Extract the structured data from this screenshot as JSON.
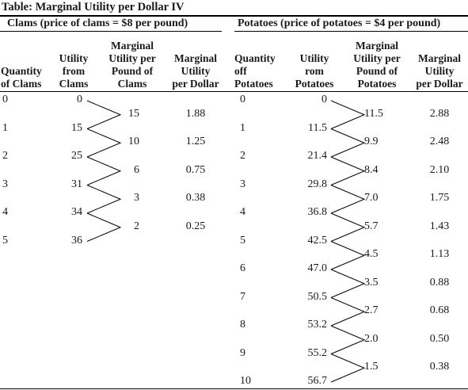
{
  "title": "Table: Marginal Utility per Dollar IV",
  "clams": {
    "group_title": "Clams (price of clams = $8 per pound)",
    "headers": {
      "quantity": [
        "Quantity",
        "of Clams"
      ],
      "utility": [
        "Utility",
        "from",
        "Clams"
      ],
      "mu": [
        "Marginal",
        "Utility per",
        "Pound of",
        "Clams"
      ],
      "mud": [
        "Marginal",
        "Utility",
        "per Dollar"
      ]
    },
    "quantity": [
      "0",
      "1",
      "2",
      "3",
      "4",
      "5"
    ],
    "utility": [
      "0",
      "15",
      "25",
      "31",
      "34",
      "36"
    ],
    "mu": [
      "15",
      "10",
      "6",
      "3",
      "2"
    ],
    "mud": [
      "1.88",
      "1.25",
      "0.75",
      "0.38",
      "0.25"
    ]
  },
  "potatoes": {
    "group_title": "Potatoes (price of potatoes = $4 per pound)",
    "headers": {
      "quantity": [
        "Quantity",
        "off",
        "Potatoes"
      ],
      "utility": [
        "Utility",
        "rom",
        "Potatoes"
      ],
      "mu": [
        "Marginal",
        "Utility per",
        "Pound of",
        "Potatoes"
      ],
      "mud": [
        "Marginal",
        "Utility",
        "per Dollar"
      ]
    },
    "quantity": [
      "0",
      "1",
      "2",
      "3",
      "4",
      "5",
      "6",
      "7",
      "8",
      "9",
      "10"
    ],
    "utility": [
      "0",
      "11.5",
      "21.4",
      "29.8",
      "36.8",
      "42.5",
      "47.0",
      "50.5",
      "53.2",
      "55.2",
      "56.7"
    ],
    "mu": [
      "11.5",
      "9.9",
      "8.4",
      "7.0",
      "5.7",
      "4.5",
      "3.5",
      "2.7",
      "2.0",
      "1.5"
    ],
    "mud": [
      "2.88",
      "2.48",
      "2.10",
      "1.75",
      "1.43",
      "1.13",
      "0.88",
      "0.68",
      "0.50",
      "0.38"
    ]
  }
}
